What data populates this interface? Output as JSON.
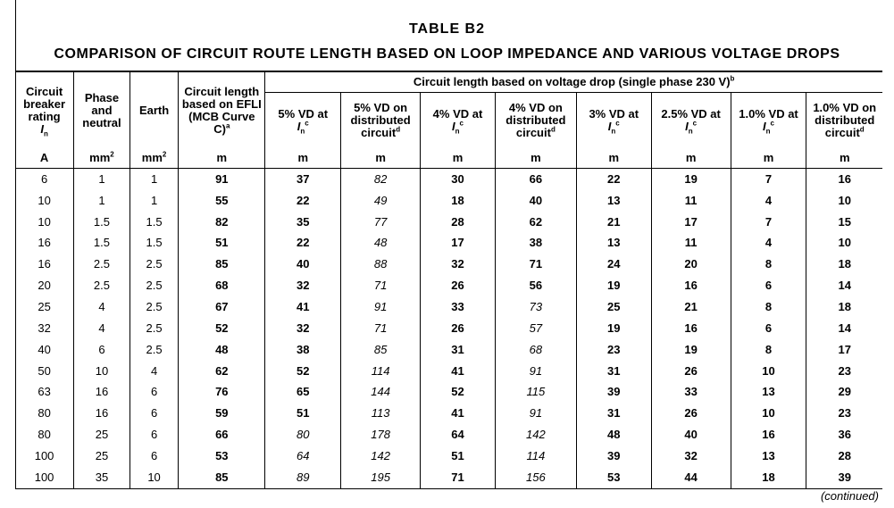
{
  "title": "TABLE   B2",
  "subtitle": "COMPARISON OF CIRCUIT ROUTE LENGTH BASED ON LOOP IMPEDANCE AND VARIOUS VOLTAGE DROPS",
  "header": {
    "col_breaker": "Circuit breaker rating",
    "col_breaker_sym": "I",
    "col_breaker_sym_sub": "n",
    "col_phase": "Phase and neutral",
    "col_earth": "Earth",
    "col_efli": "Circuit length based on EFLI (MCB Curve C)",
    "col_efli_sup": "a",
    "group": "Circuit length based on voltage drop (single phase 230 V)",
    "group_sup": "b",
    "vd": [
      {
        "text": "5% VD at",
        "sym": "I",
        "sym_sub": "n",
        "sup": "c"
      },
      {
        "text": "5% VD on distributed circuit",
        "sup": "d"
      },
      {
        "text": "4% VD at",
        "sym": "I",
        "sym_sub": "n",
        "sup": "c"
      },
      {
        "text": "4% VD on distributed circuit",
        "sup": "d"
      },
      {
        "text": "3% VD at",
        "sym": "I",
        "sym_sub": "n",
        "sup": "c"
      },
      {
        "text": "2.5% VD at",
        "sym": "I",
        "sym_sub": "n",
        "sup": "c"
      },
      {
        "text": "1.0% VD at",
        "sym": "I",
        "sym_sub": "n",
        "sup": "c"
      },
      {
        "text": "1.0% VD on distributed circuit",
        "sup": "d"
      }
    ],
    "units": [
      "A",
      "mm",
      "mm",
      "m",
      "m",
      "m",
      "m",
      "m",
      "m",
      "m",
      "m",
      "m"
    ],
    "unit_sup": "2"
  },
  "rows": [
    [
      "6",
      "1",
      "1",
      "91",
      "37",
      "82",
      "30",
      "66",
      "22",
      "19",
      "7",
      "16"
    ],
    [
      "10",
      "1",
      "1",
      "55",
      "22",
      "49",
      "18",
      "40",
      "13",
      "11",
      "4",
      "10"
    ],
    [
      "10",
      "1.5",
      "1.5",
      "82",
      "35",
      "77",
      "28",
      "62",
      "21",
      "17",
      "7",
      "15"
    ],
    [
      "16",
      "1.5",
      "1.5",
      "51",
      "22",
      "48",
      "17",
      "38",
      "13",
      "11",
      "4",
      "10"
    ],
    [
      "16",
      "2.5",
      "2.5",
      "85",
      "40",
      "88",
      "32",
      "71",
      "24",
      "20",
      "8",
      "18"
    ],
    [
      "20",
      "2.5",
      "2.5",
      "68",
      "32",
      "71",
      "26",
      "56",
      "19",
      "16",
      "6",
      "14"
    ],
    [
      "25",
      "4",
      "2.5",
      "67",
      "41",
      "91",
      "33",
      "73",
      "25",
      "21",
      "8",
      "18"
    ],
    [
      "32",
      "4",
      "2.5",
      "52",
      "32",
      "71",
      "26",
      "57",
      "19",
      "16",
      "6",
      "14"
    ],
    [
      "40",
      "6",
      "2.5",
      "48",
      "38",
      "85",
      "31",
      "68",
      "23",
      "19",
      "8",
      "17"
    ],
    [
      "50",
      "10",
      "4",
      "62",
      "52",
      "114",
      "41",
      "91",
      "31",
      "26",
      "10",
      "23"
    ],
    [
      "63",
      "16",
      "6",
      "76",
      "65",
      "144",
      "52",
      "115",
      "39",
      "33",
      "13",
      "29"
    ],
    [
      "80",
      "16",
      "6",
      "59",
      "51",
      "113",
      "41",
      "91",
      "31",
      "26",
      "10",
      "23"
    ],
    [
      "80",
      "25",
      "6",
      "66",
      "80",
      "178",
      "64",
      "142",
      "48",
      "40",
      "16",
      "36"
    ],
    [
      "100",
      "25",
      "6",
      "53",
      "64",
      "142",
      "51",
      "114",
      "39",
      "32",
      "13",
      "28"
    ],
    [
      "100",
      "35",
      "10",
      "85",
      "89",
      "195",
      "71",
      "156",
      "53",
      "44",
      "18",
      "39"
    ]
  ],
  "italic_cells": [
    [
      0,
      5
    ],
    [
      1,
      5
    ],
    [
      2,
      5
    ],
    [
      3,
      5
    ],
    [
      4,
      5
    ],
    [
      5,
      5
    ],
    [
      6,
      5
    ],
    [
      7,
      5
    ],
    [
      8,
      5
    ],
    [
      9,
      5
    ],
    [
      10,
      5
    ],
    [
      11,
      5
    ],
    [
      12,
      5
    ],
    [
      13,
      5
    ],
    [
      14,
      5
    ],
    [
      6,
      7
    ],
    [
      7,
      7
    ],
    [
      8,
      7
    ],
    [
      9,
      7
    ],
    [
      10,
      7
    ],
    [
      11,
      7
    ],
    [
      12,
      7
    ],
    [
      13,
      7
    ],
    [
      14,
      7
    ],
    [
      12,
      4
    ],
    [
      13,
      4
    ],
    [
      14,
      4
    ]
  ],
  "continued": "(continued)"
}
